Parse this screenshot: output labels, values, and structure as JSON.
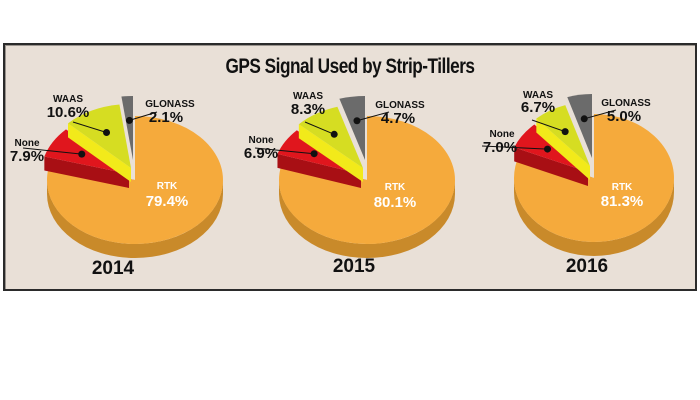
{
  "title": "GPS Signal Used by Strip-Tillers",
  "colors": {
    "RTK": "#f5aa3c",
    "RTK_side": "#c98a2a",
    "None": "#e0161d",
    "None_side": "#a80f14",
    "WAAS": "#d6dd22",
    "WAAS_side": "#f2ea1a",
    "GLONASS": "#6b6b6b",
    "GLONASS_side": "#3c3c3c",
    "panel_bg": "#e9e0d7"
  },
  "chart_data": [
    {
      "type": "pie",
      "title": "2014",
      "categories": [
        "RTK",
        "None",
        "WAAS",
        "GLONASS"
      ],
      "values": [
        79.4,
        7.9,
        10.6,
        2.1
      ],
      "labels": [
        "RTK 79.4%",
        "None 7.9%",
        "WAAS 10.6%",
        "GLONASS 2.1%"
      ]
    },
    {
      "type": "pie",
      "title": "2015",
      "categories": [
        "RTK",
        "None",
        "WAAS",
        "GLONASS"
      ],
      "values": [
        80.1,
        6.9,
        8.3,
        4.7
      ],
      "labels": [
        "RTK 80.1%",
        "None 6.9%",
        "WAAS 8.3%",
        "GLONASS 4.7%"
      ]
    },
    {
      "type": "pie",
      "title": "2016",
      "categories": [
        "RTK",
        "None",
        "WAAS",
        "GLONASS"
      ],
      "values": [
        81.3,
        7.0,
        6.7,
        5.0
      ],
      "labels": [
        "RTK 81.3%",
        "None 7.0%",
        "WAAS 6.7%",
        "GLONASS 5.0%"
      ]
    }
  ],
  "pies": [
    {
      "year": "2014",
      "rtk": {
        "name": "RTK",
        "value": "79.4%"
      },
      "none": {
        "name": "None",
        "value": "7.9%"
      },
      "waas": {
        "name": "WAAS",
        "value": "10.6%"
      },
      "glonass": {
        "name": "GLONASS",
        "value": "2.1%"
      }
    },
    {
      "year": "2015",
      "rtk": {
        "name": "RTK",
        "value": "80.1%"
      },
      "none": {
        "name": "None",
        "value": "6.9%"
      },
      "waas": {
        "name": "WAAS",
        "value": "8.3%"
      },
      "glonass": {
        "name": "GLONASS",
        "value": "4.7%"
      }
    },
    {
      "year": "2016",
      "rtk": {
        "name": "RTK",
        "value": "81.3%"
      },
      "none": {
        "name": "None",
        "value": "7.0%"
      },
      "waas": {
        "name": "WAAS",
        "value": "6.7%"
      },
      "glonass": {
        "name": "GLONASS",
        "value": "5.0%"
      }
    }
  ]
}
